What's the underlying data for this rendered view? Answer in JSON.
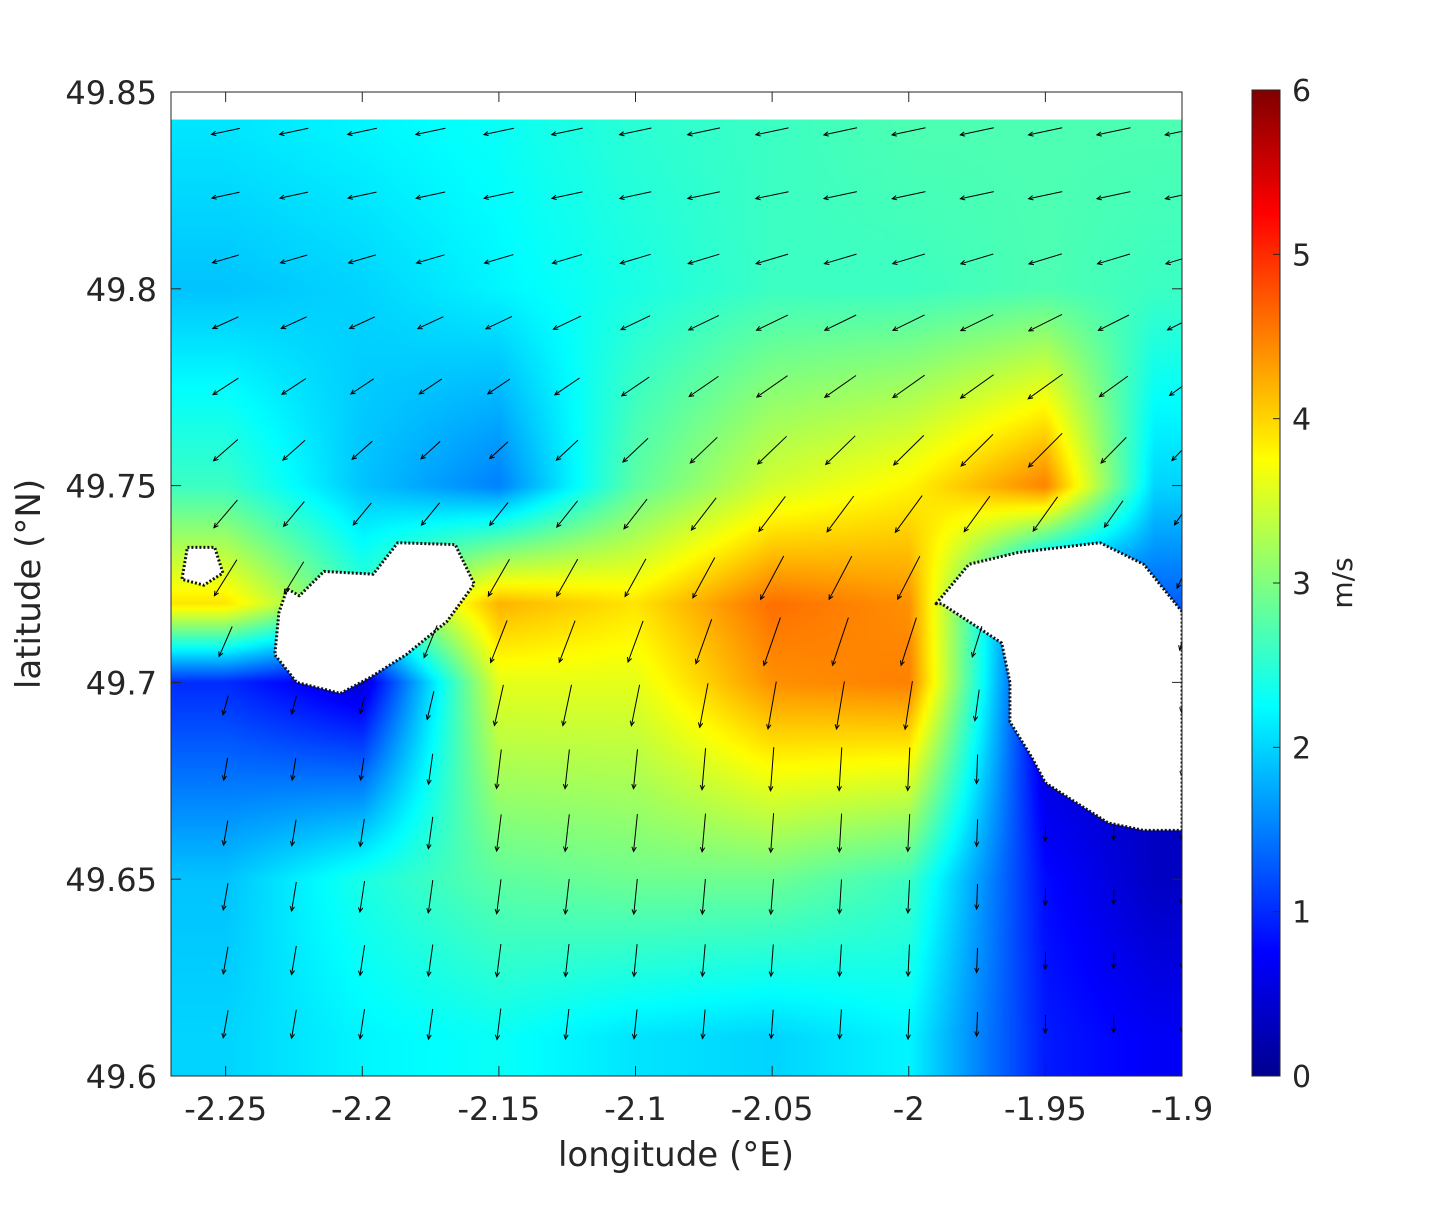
{
  "chart_data": {
    "type": "heatmap",
    "xlabel": "longitude (°E)",
    "ylabel": "latitude (°N)",
    "xlim": [
      -2.27,
      -1.9
    ],
    "ylim": [
      49.6,
      49.85
    ],
    "x_ticks": [
      -2.25,
      -2.2,
      -2.15,
      -2.1,
      -2.05,
      -2.0,
      -1.95,
      -1.9
    ],
    "x_tick_labels": [
      "-2.25",
      "-2.2",
      "-2.15",
      "-2.1",
      "-2.05",
      "-2",
      "-1.95",
      "-1.9"
    ],
    "y_ticks": [
      49.6,
      49.65,
      49.7,
      49.75,
      49.8,
      49.85
    ],
    "y_tick_labels": [
      "49.6",
      "49.65",
      "49.7",
      "49.75",
      "49.8",
      "49.85"
    ],
    "colorbar": {
      "label": "m/s",
      "range": [
        0,
        6
      ],
      "ticks": [
        0,
        1,
        2,
        3,
        4,
        5,
        6
      ],
      "tick_labels": [
        "0",
        "1",
        "2",
        "3",
        "4",
        "5",
        "6"
      ],
      "colormap": "jet"
    },
    "data_top_latitude": 49.843,
    "speed_field_m_s": {
      "note_grid": "rows from north to south, columns from west to east",
      "x": [
        -2.25,
        -2.2,
        -2.15,
        -2.1,
        -2.05,
        -2.0,
        -1.95,
        -1.91
      ],
      "y": [
        49.84,
        49.8,
        49.75,
        49.72,
        49.7,
        49.65,
        49.61
      ],
      "values": [
        [
          2.1,
          2.2,
          2.3,
          2.5,
          2.6,
          2.7,
          2.7,
          2.7
        ],
        [
          1.9,
          2.0,
          2.2,
          2.4,
          2.6,
          2.6,
          2.7,
          2.6
        ],
        [
          2.6,
          1.9,
          1.5,
          2.8,
          3.5,
          3.8,
          4.5,
          2.0
        ],
        [
          3.9,
          null,
          4.2,
          3.9,
          4.6,
          4.4,
          0.6,
          null
        ],
        [
          1.0,
          0.5,
          3.6,
          3.6,
          4.4,
          4.5,
          0.4,
          null
        ],
        [
          1.9,
          2.4,
          2.8,
          2.9,
          2.9,
          2.6,
          0.8,
          0.4
        ],
        [
          2.0,
          2.2,
          2.3,
          2.1,
          2.0,
          2.2,
          0.9,
          0.7
        ]
      ]
    },
    "islands_lon_lat": [
      [
        [
          -2.2275,
          49.7238
        ],
        [
          -2.2305,
          49.7177
        ],
        [
          -2.232,
          49.707
        ],
        [
          -2.224,
          49.7
        ],
        [
          -2.208,
          49.6972
        ],
        [
          -2.197,
          49.7013
        ],
        [
          -2.184,
          49.707
        ],
        [
          -2.169,
          49.7155
        ],
        [
          -2.159,
          49.725
        ],
        [
          -2.166,
          49.735
        ],
        [
          -2.187,
          49.7355
        ],
        [
          -2.196,
          49.7275
        ],
        [
          -2.214,
          49.7282
        ],
        [
          -2.223,
          49.722
        ]
      ],
      [
        [
          -2.264,
          49.7343
        ],
        [
          -2.254,
          49.7343
        ],
        [
          -2.251,
          49.7278
        ],
        [
          -2.258,
          49.7247
        ],
        [
          -2.266,
          49.7262
        ]
      ],
      [
        [
          -1.99,
          49.72
        ],
        [
          -1.978,
          49.73
        ],
        [
          -1.96,
          49.733
        ],
        [
          -1.93,
          49.7355
        ],
        [
          -1.914,
          49.73
        ],
        [
          -1.9,
          49.718
        ],
        [
          -1.9,
          49.6624
        ],
        [
          -1.914,
          49.6624
        ],
        [
          -1.927,
          49.6643
        ],
        [
          -1.94,
          49.67
        ],
        [
          -1.95,
          49.6745
        ],
        [
          -1.955,
          49.681
        ],
        [
          -1.963,
          49.69
        ],
        [
          -1.963,
          49.7
        ],
        [
          -1.966,
          49.71
        ],
        [
          -1.988,
          49.72
        ]
      ]
    ],
    "arrow_grid": {
      "x": [
        -2.25,
        -2.225,
        -2.2,
        -2.175,
        -2.15,
        -2.125,
        -2.1,
        -2.075,
        -2.05,
        -2.025,
        -2.0,
        -1.975,
        -1.95,
        -1.925,
        -1.9
      ],
      "y": [
        49.84,
        49.8238,
        49.8076,
        49.7914,
        49.7752,
        49.759,
        49.7428,
        49.7266,
        49.7104,
        49.6942,
        49.678,
        49.6618,
        49.6456,
        49.6294,
        49.6132
      ]
    }
  }
}
